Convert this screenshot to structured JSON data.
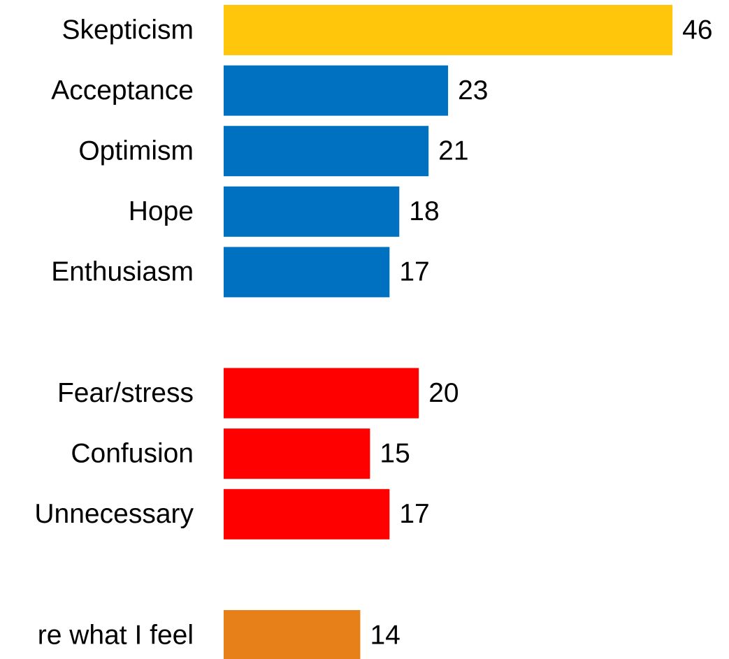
{
  "chart_data": {
    "type": "hbar",
    "categories": [
      "Skepticism",
      "Acceptance",
      "Optimism",
      "Hope",
      "Enthusiasm",
      null,
      "Fear/stress",
      "Confusion",
      "Unnecessary",
      null,
      "re what I feel"
    ],
    "values": [
      46,
      23,
      21,
      18,
      17,
      null,
      20,
      15,
      17,
      null,
      14
    ],
    "colors": [
      "#FFC60B",
      "#0070C0",
      "#0070C0",
      "#0070C0",
      "#0070C0",
      null,
      "#FF0000",
      "#FF0000",
      "#FF0000",
      null,
      "#E8801A"
    ]
  }
}
